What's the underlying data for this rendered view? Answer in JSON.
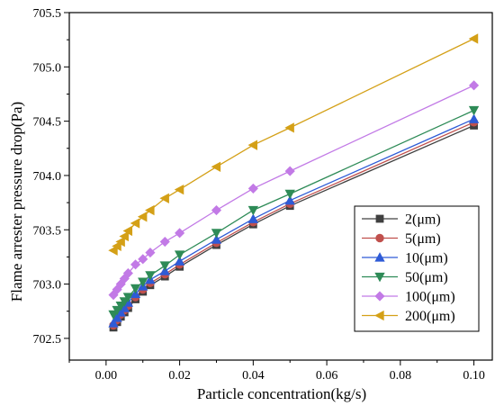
{
  "chart_data": {
    "type": "line",
    "title": "",
    "xlabel": "Particle concentration(kg/s)",
    "ylabel": "Flame arrester pressure drop(Pa)",
    "xlim": [
      -0.01,
      0.105
    ],
    "ylim": [
      702.3,
      705.5
    ],
    "x_ticks": [
      0.0,
      0.02,
      0.04,
      0.06,
      0.08,
      0.1
    ],
    "x_tick_labels": [
      "0.00",
      "0.02",
      "0.04",
      "0.06",
      "0.08",
      "0.10"
    ],
    "y_ticks": [
      702.5,
      703.0,
      703.5,
      704.0,
      704.5,
      705.0,
      705.5
    ],
    "y_tick_labels": [
      "702.5",
      "703.0",
      "703.5",
      "704.0",
      "704.5",
      "705.0",
      "705.5"
    ],
    "grid": false,
    "legend_position": "bottom-right",
    "x": [
      0.002,
      0.003,
      0.004,
      0.005,
      0.006,
      0.008,
      0.01,
      0.012,
      0.016,
      0.02,
      0.03,
      0.04,
      0.05,
      0.1
    ],
    "series": [
      {
        "name": "2(μm)",
        "color": "#404040",
        "marker": "square",
        "values": [
          702.6,
          702.65,
          702.7,
          702.74,
          702.78,
          702.86,
          702.93,
          702.99,
          703.07,
          703.16,
          703.36,
          703.55,
          703.72,
          704.46
        ]
      },
      {
        "name": "5(μm)",
        "color": "#c0504d",
        "marker": "circle",
        "values": [
          702.62,
          702.67,
          702.72,
          702.76,
          702.8,
          702.88,
          702.95,
          703.01,
          703.09,
          703.18,
          703.38,
          703.57,
          703.74,
          704.49
        ]
      },
      {
        "name": "10(μm)",
        "color": "#2e5bd6",
        "marker": "triangle-up",
        "values": [
          702.64,
          702.69,
          702.74,
          702.78,
          702.83,
          702.91,
          702.98,
          703.04,
          703.12,
          703.21,
          703.41,
          703.6,
          703.77,
          704.52
        ]
      },
      {
        "name": "50(μm)",
        "color": "#2e8b57",
        "marker": "triangle-down",
        "values": [
          702.72,
          702.76,
          702.8,
          702.84,
          702.88,
          702.96,
          703.02,
          703.08,
          703.17,
          703.27,
          703.47,
          703.68,
          703.83,
          704.6
        ]
      },
      {
        "name": "100(μm)",
        "color": "#c27ae6",
        "marker": "diamond",
        "values": [
          702.9,
          702.95,
          703.0,
          703.05,
          703.1,
          703.18,
          703.23,
          703.29,
          703.39,
          703.47,
          703.68,
          703.88,
          704.04,
          704.83
        ]
      },
      {
        "name": "200(μm)",
        "color": "#d4a017",
        "marker": "triangle-left",
        "values": [
          703.31,
          703.35,
          703.39,
          703.44,
          703.49,
          703.56,
          703.62,
          703.68,
          703.79,
          703.87,
          704.08,
          704.28,
          704.44,
          705.26
        ]
      }
    ]
  }
}
